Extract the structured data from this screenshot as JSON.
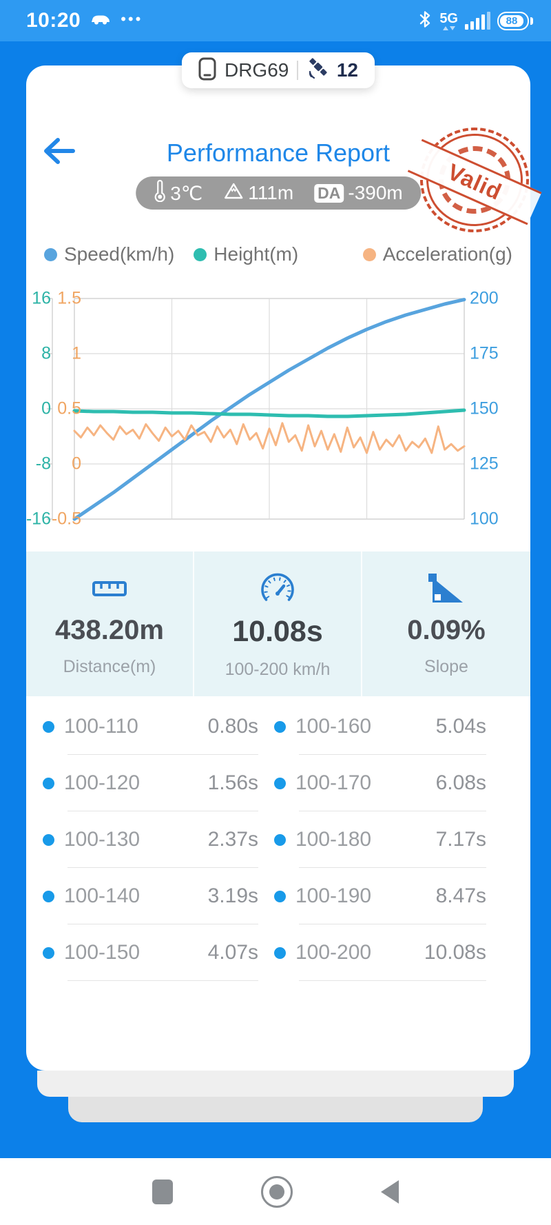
{
  "status_bar": {
    "time": "10:20",
    "network": "5G",
    "battery": "88"
  },
  "device_chip": {
    "name": "DRG69",
    "satellites": "12"
  },
  "header": {
    "title": "Performance Report",
    "stamp_text": "Valid",
    "env": {
      "temperature": "3℃",
      "altitude": "111m",
      "da_label": "DA",
      "da_value": "-390m"
    }
  },
  "chart_data": {
    "type": "line",
    "x_range": [
      0,
      1
    ],
    "grid": {
      "rows": 4,
      "columns": 4,
      "gridlines": true
    },
    "legend_position": "top",
    "series": [
      {
        "name": "Speed(km/h)",
        "axis": "speed",
        "color": "#58a4de",
        "width": 5,
        "values": [
          100,
          106,
          112,
          118.5,
          125,
          131.5,
          138,
          144.5,
          150.5,
          156.5,
          162,
          167.5,
          172.5,
          177.5,
          182,
          186,
          189.5,
          192.5,
          195,
          197.5,
          199.5
        ]
      },
      {
        "name": "Height(m)",
        "axis": "height",
        "color": "#2ebdb0",
        "width": 5,
        "values": [
          -0.3,
          -0.4,
          -0.4,
          -0.5,
          -0.5,
          -0.6,
          -0.6,
          -0.7,
          -0.8,
          -0.8,
          -0.9,
          -1.0,
          -1.0,
          -1.1,
          -1.1,
          -1.0,
          -0.9,
          -0.8,
          -0.6,
          -0.4,
          -0.2
        ]
      },
      {
        "name": "Acceleration(g)",
        "axis": "acceleration",
        "color": "#f6b482",
        "width": 3,
        "values": [
          0.3,
          0.24,
          0.33,
          0.26,
          0.35,
          0.28,
          0.22,
          0.34,
          0.27,
          0.31,
          0.23,
          0.36,
          0.28,
          0.21,
          0.33,
          0.25,
          0.3,
          0.22,
          0.35,
          0.26,
          0.29,
          0.2,
          0.34,
          0.24,
          0.31,
          0.18,
          0.36,
          0.22,
          0.28,
          0.14,
          0.32,
          0.17,
          0.37,
          0.2,
          0.26,
          0.12,
          0.35,
          0.16,
          0.3,
          0.13,
          0.27,
          0.11,
          0.33,
          0.15,
          0.24,
          0.1,
          0.29,
          0.13,
          0.22,
          0.16,
          0.26,
          0.12,
          0.2,
          0.15,
          0.23,
          0.1,
          0.34,
          0.13,
          0.18,
          0.12,
          0.16
        ]
      }
    ],
    "axes": {
      "height": {
        "ticks": [
          16,
          8,
          0,
          -8,
          -16
        ],
        "max": 16,
        "min": -16,
        "color": "#2db3a6",
        "position": "left-outer"
      },
      "acceleration": {
        "ticks": [
          1.5,
          1,
          0.5,
          0,
          -0.5
        ],
        "max": 1.5,
        "min": -0.5,
        "color": "#f0a562",
        "position": "left-inner"
      },
      "speed": {
        "ticks": [
          200,
          175,
          150,
          125,
          100
        ],
        "max": 200,
        "min": 100,
        "color": "#3d9edf",
        "position": "right"
      }
    }
  },
  "stats": [
    {
      "icon": "ruler-icon",
      "value": "438.20m",
      "label": "Distance(m)"
    },
    {
      "icon": "speedometer-icon",
      "value": "10.08s",
      "label": "100-200 km/h"
    },
    {
      "icon": "slope-icon",
      "value": "0.09%",
      "label": "Slope"
    }
  ],
  "intervals": {
    "left": [
      {
        "range": "100-110",
        "time": "0.80s"
      },
      {
        "range": "100-120",
        "time": "1.56s"
      },
      {
        "range": "100-130",
        "time": "2.37s"
      },
      {
        "range": "100-140",
        "time": "3.19s"
      },
      {
        "range": "100-150",
        "time": "4.07s"
      }
    ],
    "right": [
      {
        "range": "100-160",
        "time": "5.04s"
      },
      {
        "range": "100-170",
        "time": "6.08s"
      },
      {
        "range": "100-180",
        "time": "7.17s"
      },
      {
        "range": "100-190",
        "time": "8.47s"
      },
      {
        "range": "100-200",
        "time": "10.08s"
      }
    ]
  },
  "colors": {
    "accent_blue": "#1e87e8",
    "stamp_red": "#cb4526",
    "dot_blue": "#189ae9",
    "stats_bg": "#e7f4f7"
  }
}
